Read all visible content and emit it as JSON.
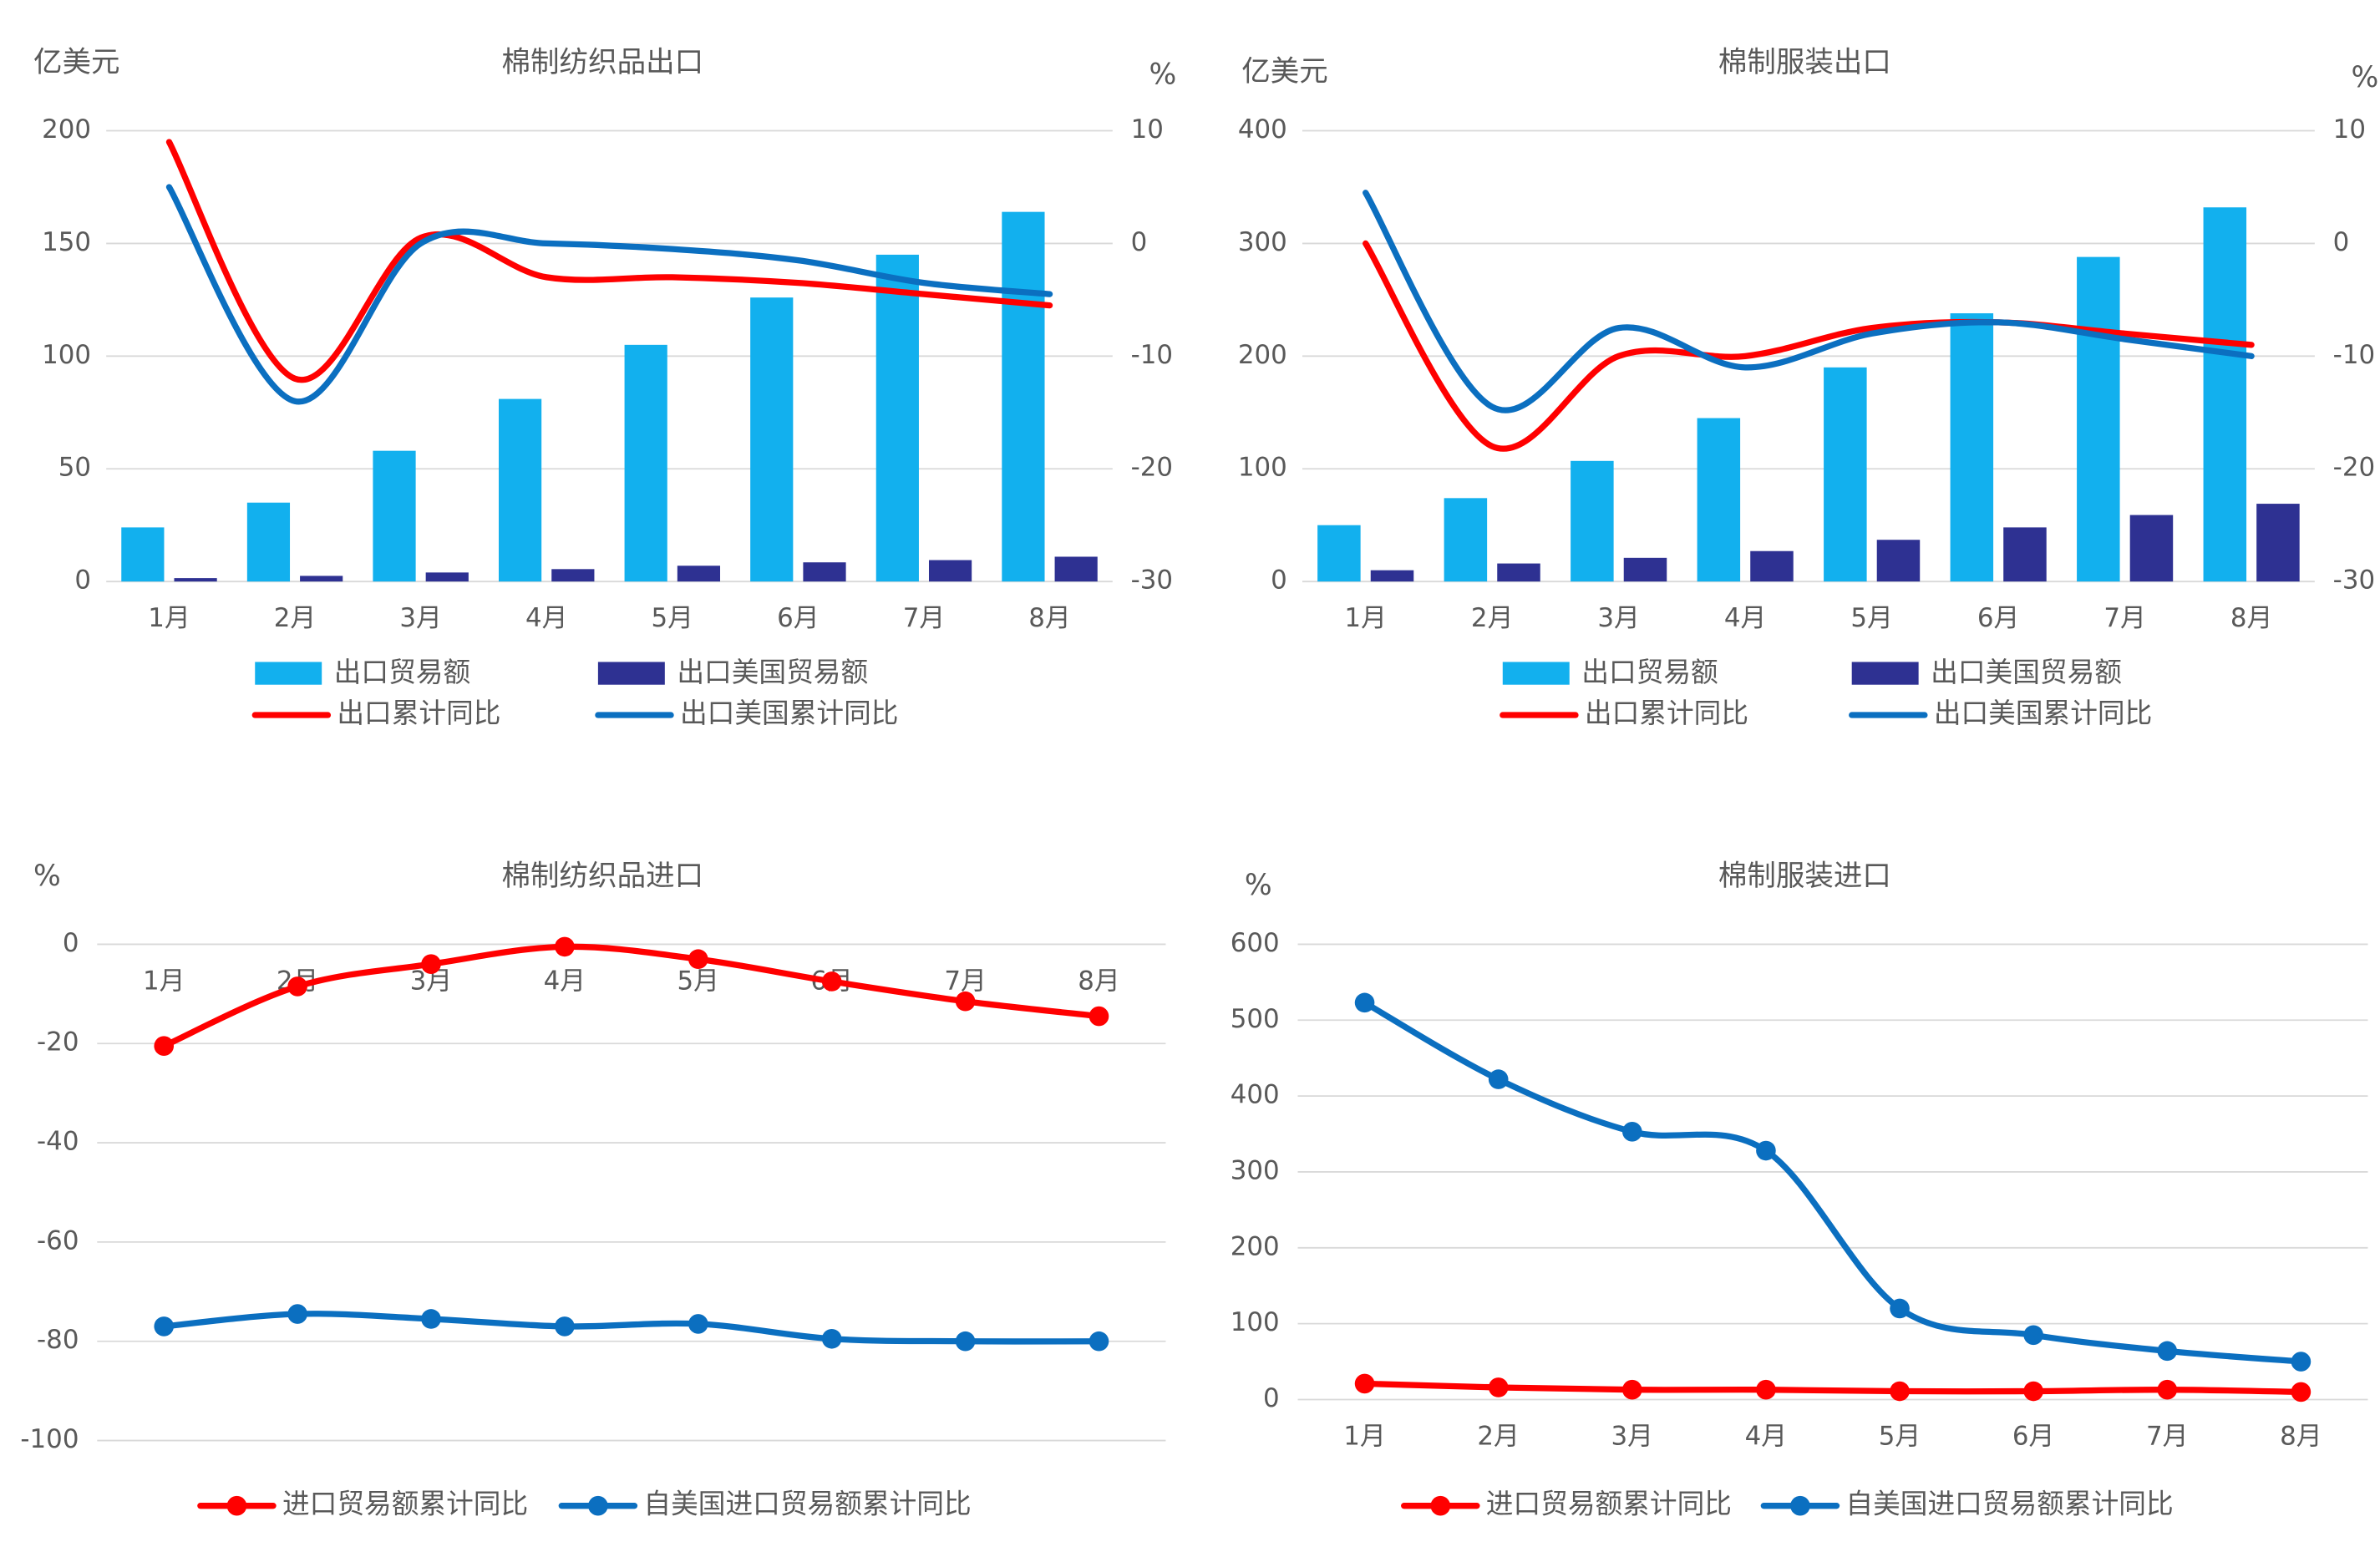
{
  "chart_data": [
    {
      "type": "bar",
      "title": "棉制纺织品出口",
      "ylabel": "亿美元",
      "y2label": "%",
      "categories": [
        "1月",
        "2月",
        "3月",
        "4月",
        "5月",
        "6月",
        "7月",
        "8月"
      ],
      "ylim": [
        0,
        200
      ],
      "yticks": [
        "0",
        "50",
        "100",
        "150",
        "200"
      ],
      "y2lim": [
        -30,
        10
      ],
      "y2ticks": [
        "-30",
        "-20",
        "-10",
        "0",
        "10"
      ],
      "grid": true,
      "legend_position": "bottom",
      "series": [
        {
          "name": "出口贸易额",
          "kind": "bar",
          "axis": "left",
          "color": "#12B0EE",
          "values": [
            24,
            35,
            58,
            81,
            105,
            126,
            145,
            164
          ]
        },
        {
          "name": "出口美国贸易额",
          "kind": "bar",
          "axis": "left",
          "color": "#2E3192",
          "values": [
            1.5,
            2.5,
            4,
            5.5,
            7,
            8.5,
            9.5,
            11
          ]
        },
        {
          "name": "出口累计同比",
          "kind": "line",
          "axis": "right",
          "color": "#FF0000",
          "values": [
            9,
            -12,
            0.5,
            -3,
            -3,
            -3.5,
            -4.5,
            -5.5
          ]
        },
        {
          "name": "出口美国累计同比",
          "kind": "line",
          "axis": "right",
          "color": "#0B6FC0",
          "values": [
            5,
            -14,
            0,
            0,
            -0.5,
            -1.5,
            -3.5,
            -4.5
          ]
        }
      ]
    },
    {
      "type": "bar",
      "title": "棉制服装出口",
      "ylabel": "亿美元",
      "y2label": "%",
      "categories": [
        "1月",
        "2月",
        "3月",
        "4月",
        "5月",
        "6月",
        "7月",
        "8月"
      ],
      "ylim": [
        0,
        400
      ],
      "yticks": [
        "0",
        "100",
        "200",
        "300",
        "400"
      ],
      "y2lim": [
        -30,
        10
      ],
      "y2ticks": [
        "-30",
        "-20",
        "-10",
        "0",
        "10"
      ],
      "grid": true,
      "legend_position": "bottom",
      "series": [
        {
          "name": "出口贸易额",
          "kind": "bar",
          "axis": "left",
          "color": "#12B0EE",
          "values": [
            50,
            74,
            107,
            145,
            190,
            238,
            288,
            332
          ]
        },
        {
          "name": "出口美国贸易额",
          "kind": "bar",
          "axis": "left",
          "color": "#2E3192",
          "values": [
            10,
            16,
            21,
            27,
            37,
            48,
            59,
            69
          ]
        },
        {
          "name": "出口累计同比",
          "kind": "line",
          "axis": "right",
          "color": "#FF0000",
          "values": [
            0,
            -18,
            -10,
            -10,
            -7.5,
            -7,
            -8,
            -9
          ]
        },
        {
          "name": "出口美国累计同比",
          "kind": "line",
          "axis": "right",
          "color": "#0B6FC0",
          "values": [
            4.5,
            -14.5,
            -7.5,
            -11,
            -8,
            -7,
            -8.5,
            -10
          ]
        }
      ]
    },
    {
      "type": "line",
      "title": "棉制纺织品进口",
      "ylabel": "%",
      "categories": [
        "1月",
        "2月",
        "3月",
        "4月",
        "5月",
        "6月",
        "7月",
        "8月"
      ],
      "ylim": [
        -100,
        0
      ],
      "yticks": [
        "-100",
        "-80",
        "-60",
        "-40",
        "-20",
        "0"
      ],
      "x_axis_at": 0,
      "grid": true,
      "legend_position": "bottom",
      "series": [
        {
          "name": "进口贸易额累计同比",
          "color": "#FF0000",
          "values": [
            -20.5,
            -8.5,
            -4,
            -0.5,
            -3,
            -7.5,
            -11.5,
            -14.5
          ]
        },
        {
          "name": "自美国进口贸易额累计同比",
          "color": "#0B6FC0",
          "values": [
            -77,
            -74.5,
            -75.5,
            -77,
            -76.5,
            -79.5,
            -80,
            -80
          ]
        }
      ]
    },
    {
      "type": "line",
      "title": "棉制服装进口",
      "ylabel": "%",
      "categories": [
        "1月",
        "2月",
        "3月",
        "4月",
        "5月",
        "6月",
        "7月",
        "8月"
      ],
      "ylim": [
        0,
        600
      ],
      "yticks": [
        "0",
        "100",
        "200",
        "300",
        "400",
        "500",
        "600"
      ],
      "grid": true,
      "legend_position": "bottom",
      "series": [
        {
          "name": "进口贸易额累计同比",
          "color": "#FF0000",
          "values": [
            21,
            16,
            13,
            13,
            11,
            11,
            13,
            10
          ]
        },
        {
          "name": "自美国进口贸易额累计同比",
          "color": "#0B6FC0",
          "values": [
            523,
            422,
            353,
            328,
            120,
            85,
            64,
            50
          ]
        }
      ]
    }
  ]
}
